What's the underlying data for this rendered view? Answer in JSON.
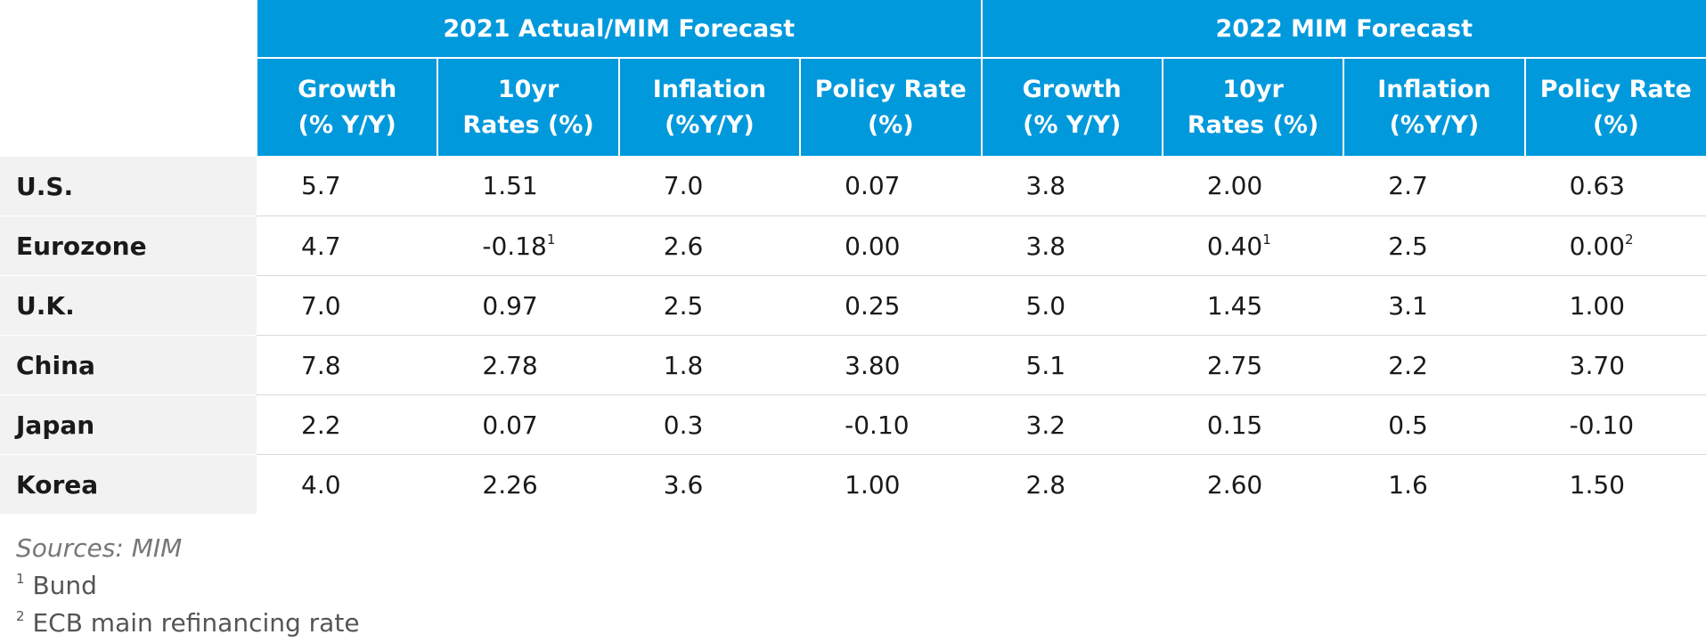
{
  "table": {
    "groups": [
      "2021 Actual/MIM Forecast",
      "2022 MIM Forecast"
    ],
    "columns": [
      [
        "Growth",
        "(% Y/Y)"
      ],
      [
        "10yr",
        "Rates (%)"
      ],
      [
        "Inflation",
        "(%Y/Y)"
      ],
      [
        "Policy Rate",
        "(%)"
      ],
      [
        "Growth",
        "(% Y/Y)"
      ],
      [
        "10yr",
        "Rates (%)"
      ],
      [
        "Inflation",
        "(%Y/Y)"
      ],
      [
        "Policy Rate",
        "(%)"
      ]
    ],
    "rows": [
      {
        "label": "U.S.",
        "cells": [
          "5.7",
          "1.51",
          "7.0",
          "0.07",
          "3.8",
          "2.00",
          "2.7",
          "0.63"
        ]
      },
      {
        "label": "Eurozone",
        "cells": [
          "4.7",
          {
            "text": "-0.18",
            "note": "1"
          },
          "2.6",
          "0.00",
          "3.8",
          {
            "text": "0.40",
            "note": "1"
          },
          "2.5",
          {
            "text": "0.00",
            "note": "2"
          }
        ]
      },
      {
        "label": "U.K.",
        "cells": [
          "7.0",
          "0.97",
          "2.5",
          "0.25",
          "5.0",
          "1.45",
          "3.1",
          "1.00"
        ]
      },
      {
        "label": "China",
        "cells": [
          "7.8",
          "2.78",
          "1.8",
          "3.80",
          "5.1",
          "2.75",
          "2.2",
          "3.70"
        ]
      },
      {
        "label": "Japan",
        "cells": [
          "2.2",
          "0.07",
          "0.3",
          "-0.10",
          "3.2",
          "0.15",
          "0.5",
          "-0.10"
        ]
      },
      {
        "label": "Korea",
        "cells": [
          "4.0",
          "2.26",
          "3.6",
          "1.00",
          "2.8",
          "2.60",
          "1.6",
          "1.50"
        ]
      }
    ]
  },
  "footer": {
    "source": "Sources: MIM",
    "notes": [
      {
        "mark": "1",
        "text": "Bund"
      },
      {
        "mark": "2",
        "text": "ECB main refinancing rate"
      }
    ]
  }
}
